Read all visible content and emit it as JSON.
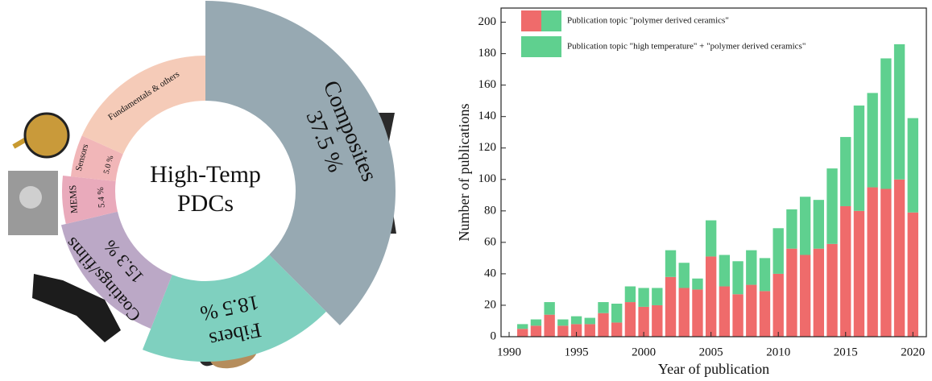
{
  "chart_data": [
    {
      "type": "donut",
      "center_label": [
        "High-Temp",
        "PDCs"
      ],
      "categories": [
        "Composites",
        "Fibers",
        "Coatings/films",
        "MEMS",
        "Sensors",
        "Fundamentals & others"
      ],
      "values": [
        37.5,
        18.5,
        15.3,
        5.4,
        5.0,
        18.3
      ],
      "value_labels": [
        "37.5 %",
        "18.5 %",
        "15.3 %",
        "5.4 %",
        "5.0 %",
        null
      ],
      "colors": [
        "#97a9b2",
        "#7fd0bf",
        "#bba8c6",
        "#e9aabb",
        "#f1b6b8",
        "#f5cbb8"
      ]
    },
    {
      "type": "bar",
      "stacked": true,
      "x": [
        1991,
        1992,
        1993,
        1994,
        1995,
        1996,
        1997,
        1998,
        1999,
        2000,
        2001,
        2002,
        2003,
        2004,
        2005,
        2006,
        2007,
        2008,
        2009,
        2010,
        2011,
        2012,
        2013,
        2014,
        2015,
        2016,
        2017,
        2018,
        2019,
        2020
      ],
      "series": [
        {
          "name": "Publication topic \"polymer derived ceramics\"",
          "color": "#ef6b6b",
          "values": [
            5,
            7,
            14,
            7,
            8,
            8,
            15,
            9,
            22,
            19,
            20,
            38,
            31,
            30,
            51,
            32,
            27,
            33,
            29,
            40,
            56,
            52,
            56,
            59,
            83,
            80,
            95,
            94,
            100,
            79
          ]
        },
        {
          "name": "Publication topic \"high temperature\" + \"polymer derived ceramics\"",
          "color": "#5fd08f",
          "values": [
            3,
            4,
            8,
            4,
            5,
            4,
            7,
            12,
            10,
            12,
            11,
            17,
            16,
            7,
            23,
            20,
            21,
            22,
            21,
            29,
            25,
            37,
            31,
            48,
            44,
            67,
            60,
            83,
            86,
            60
          ]
        }
      ],
      "xlabel": "Year of publication",
      "ylabel": "Number of publications",
      "xlim": [
        1989.4,
        2021
      ],
      "ylim": [
        0,
        209
      ],
      "xticks": [
        1990,
        1995,
        2000,
        2005,
        2010,
        2015,
        2020
      ],
      "yticks": [
        0,
        20,
        40,
        60,
        80,
        100,
        120,
        140,
        160,
        180,
        200
      ]
    }
  ]
}
